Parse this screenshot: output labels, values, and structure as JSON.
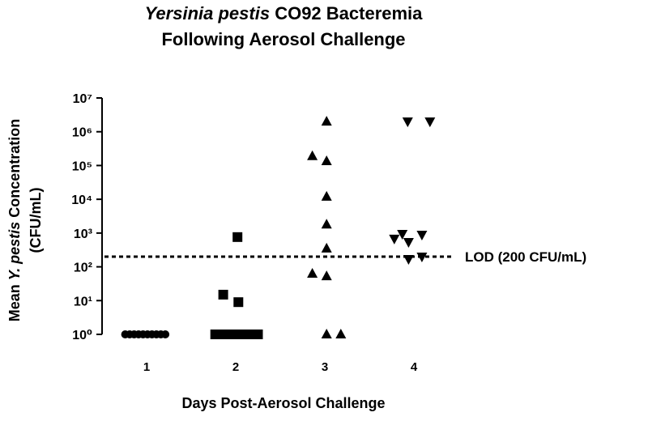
{
  "chart_data": {
    "type": "scatter",
    "title_lines": [
      {
        "italic": "Yersinia pestis",
        "text": "CO92 Bacteremia"
      },
      {
        "text": "Following Aerosol Challenge"
      }
    ],
    "ylabel": {
      "before": "Mean",
      "italic": "Y. pestis",
      "after": "Concentration",
      "unit": "(CFU/mL)"
    },
    "xlabel": "Days Post-Aerosol Challenge",
    "log_y": true,
    "xlim": [
      0.5,
      4.5
    ],
    "xticks": [
      1,
      2,
      3,
      4
    ],
    "ylim": [
      1,
      10000000
    ],
    "yticks": [
      {
        "value": 1,
        "label": "10⁰"
      },
      {
        "value": 10,
        "label": "10¹"
      },
      {
        "value": 100,
        "label": "10²"
      },
      {
        "value": 1000,
        "label": "10³"
      },
      {
        "value": 10000,
        "label": "10⁴"
      },
      {
        "value": 100000,
        "label": "10⁵"
      },
      {
        "value": 1000000,
        "label": "10⁶"
      },
      {
        "value": 10000000,
        "label": "10⁷"
      }
    ],
    "series": [
      {
        "marker": "circle",
        "color": "#000000",
        "x": [
          0.76,
          0.81,
          0.86,
          0.91,
          0.96,
          1.01,
          1.06,
          1.11,
          1.16,
          1.21
        ],
        "values": [
          1,
          1,
          1,
          1,
          1,
          1,
          1,
          1,
          1,
          1
        ]
      },
      {
        "marker": "square",
        "color": "#000000",
        "x": [
          2.02,
          1.86,
          2.03,
          1.77,
          1.83,
          1.89,
          1.95,
          2.01,
          2.07,
          2.13,
          2.19,
          2.25
        ],
        "values": [
          760,
          15,
          9,
          1,
          1,
          1,
          1,
          1,
          1,
          1,
          1,
          1
        ]
      },
      {
        "marker": "triangle-up",
        "color": "#000000",
        "x": [
          2.02,
          1.86,
          2.02,
          2.02,
          2.02,
          2.02,
          1.86,
          2.02,
          2.02,
          2.18
        ],
        "values": [
          2000000,
          190000,
          135000,
          12000,
          1800,
          350,
          63,
          53,
          1,
          1
        ]
      },
      {
        "marker": "triangle-down",
        "color": "#000000",
        "x": [
          1.93,
          2.18,
          1.78,
          1.87,
          1.94,
          2.09,
          1.94,
          2.09
        ],
        "values": [
          2000000,
          2000000,
          680,
          940,
          540,
          890,
          170,
          200
        ]
      }
    ],
    "series_x_offset": [
      0,
      0,
      1,
      2
    ],
    "lod": 200,
    "lod_label": "LOD (200 CFU/mL)"
  }
}
